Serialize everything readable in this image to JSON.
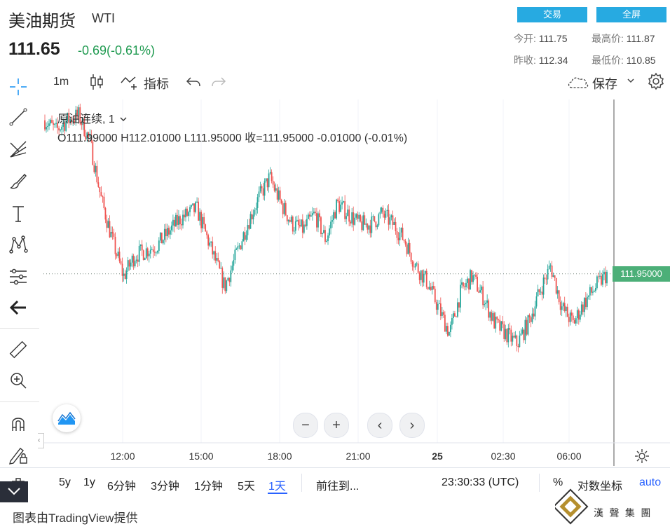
{
  "header": {
    "name": "美油期货",
    "ticker": "WTI",
    "price": "111.65",
    "change": "-0.69(-0.61%)",
    "buttons": {
      "trade": "交易",
      "fullscreen": "全屏"
    },
    "stats": {
      "open_label": "今开:",
      "open": "111.75",
      "high_label": "最高价:",
      "high": "111.87",
      "prev_close_label": "昨收:",
      "prev_close": "112.34",
      "low_label": "最低价:",
      "low": "110.85"
    }
  },
  "toolbar": {
    "interval": "1m",
    "indicators": "指标",
    "save": "保存"
  },
  "legend": {
    "title": "原油连续, 1",
    "ohlc": "O111.99000  H112.01000  L111.95000  收=111.95000  -0.01000 (-0.01%)"
  },
  "chart_data": {
    "type": "candlestick",
    "ylim": [
      108.7,
      115.3
    ],
    "last_price": 111.95,
    "last_price_label": "111.95000",
    "x_ticks": [
      "12:00",
      "15:00",
      "18:00",
      "21:00",
      "25",
      "02:30",
      "06:00"
    ],
    "path_points": [
      [
        0,
        114.9
      ],
      [
        0.02,
        114.7
      ],
      [
        0.04,
        114.9
      ],
      [
        0.06,
        115.0
      ],
      [
        0.08,
        114.5
      ],
      [
        0.1,
        113.4
      ],
      [
        0.12,
        112.6
      ],
      [
        0.14,
        111.9
      ],
      [
        0.16,
        112.3
      ],
      [
        0.18,
        112.4
      ],
      [
        0.2,
        112.5
      ],
      [
        0.24,
        113.0
      ],
      [
        0.27,
        113.2
      ],
      [
        0.3,
        112.3
      ],
      [
        0.32,
        111.7
      ],
      [
        0.34,
        112.3
      ],
      [
        0.36,
        112.9
      ],
      [
        0.38,
        113.4
      ],
      [
        0.4,
        113.8
      ],
      [
        0.42,
        113.3
      ],
      [
        0.44,
        112.9
      ],
      [
        0.46,
        112.8
      ],
      [
        0.48,
        113.1
      ],
      [
        0.5,
        112.6
      ],
      [
        0.52,
        113.3
      ],
      [
        0.56,
        112.9
      ],
      [
        0.58,
        112.9
      ],
      [
        0.6,
        113.1
      ],
      [
        0.62,
        112.9
      ],
      [
        0.64,
        112.6
      ],
      [
        0.66,
        112.1
      ],
      [
        0.68,
        111.8
      ],
      [
        0.7,
        111.3
      ],
      [
        0.72,
        110.8
      ],
      [
        0.74,
        111.6
      ],
      [
        0.76,
        111.9
      ],
      [
        0.78,
        111.5
      ],
      [
        0.8,
        111.0
      ],
      [
        0.82,
        110.8
      ],
      [
        0.84,
        110.6
      ],
      [
        0.86,
        111.0
      ],
      [
        0.88,
        111.6
      ],
      [
        0.9,
        112.1
      ],
      [
        0.92,
        111.3
      ],
      [
        0.94,
        111.0
      ],
      [
        0.96,
        111.4
      ],
      [
        0.98,
        111.7
      ],
      [
        1.0,
        111.95
      ]
    ]
  },
  "bottom": {
    "ranges": [
      "5y",
      "1y",
      "6分钟",
      "3分钟",
      "1分钟",
      "5天",
      "1天"
    ],
    "goto": "前往到...",
    "time": "23:30:33 (UTC)",
    "percent": "%",
    "log": "对数坐标",
    "auto": "auto"
  },
  "footer": "图表由TradingView提供",
  "watermark_text": "漢 聲 集 團",
  "colors": {
    "up": "#26a69a",
    "down": "#ef5350",
    "accent": "#2962ff",
    "button": "#27aae1",
    "price_tag": "#4caf78",
    "positive": "#1f9a50"
  }
}
